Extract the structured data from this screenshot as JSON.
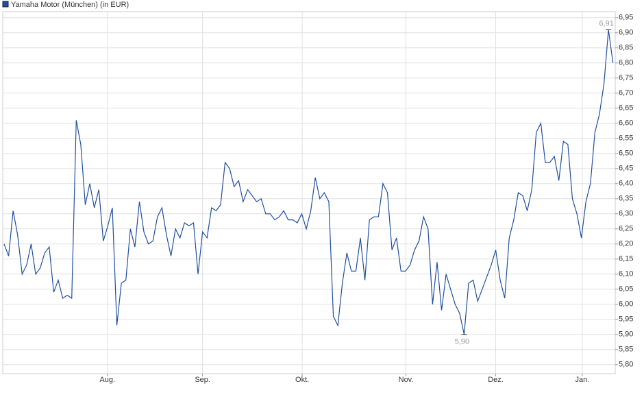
{
  "chart_data": {
    "type": "line",
    "series": [
      {
        "name": "Yamaha Motor (München) (in EUR)",
        "color": "#1f4fa0",
        "values": [
          6.2,
          6.16,
          6.31,
          6.23,
          6.1,
          6.13,
          6.2,
          6.1,
          6.12,
          6.17,
          6.19,
          6.04,
          6.08,
          6.02,
          6.03,
          6.02,
          6.61,
          6.53,
          6.33,
          6.4,
          6.32,
          6.38,
          6.21,
          6.26,
          6.32,
          5.93,
          6.07,
          6.08,
          6.25,
          6.19,
          6.34,
          6.24,
          6.2,
          6.21,
          6.29,
          6.32,
          6.23,
          6.16,
          6.25,
          6.22,
          6.27,
          6.26,
          6.27,
          6.1,
          6.24,
          6.22,
          6.32,
          6.31,
          6.33,
          6.47,
          6.45,
          6.39,
          6.41,
          6.34,
          6.38,
          6.36,
          6.34,
          6.35,
          6.3,
          6.3,
          6.28,
          6.29,
          6.31,
          6.28,
          6.28,
          6.27,
          6.3,
          6.25,
          6.31,
          6.42,
          6.35,
          6.37,
          6.34,
          5.96,
          5.93,
          6.07,
          6.17,
          6.11,
          6.11,
          6.22,
          6.08,
          6.28,
          6.29,
          6.29,
          6.4,
          6.37,
          6.18,
          6.22,
          6.11,
          6.11,
          6.13,
          6.18,
          6.21,
          6.29,
          6.25,
          6.0,
          6.14,
          5.98,
          6.1,
          6.05,
          6.0,
          5.97,
          5.9,
          6.07,
          6.08,
          6.01,
          6.05,
          6.09,
          6.13,
          6.18,
          6.08,
          6.02,
          6.22,
          6.28,
          6.37,
          6.36,
          6.31,
          6.38,
          6.57,
          6.6,
          6.47,
          6.47,
          6.49,
          6.41,
          6.54,
          6.53,
          6.35,
          6.3,
          6.22,
          6.34,
          6.4,
          6.57,
          6.63,
          6.73,
          6.91,
          6.8
        ],
        "value_labels": [
          null,
          null,
          null,
          null,
          null,
          null,
          null,
          null,
          null,
          null,
          null,
          null,
          null,
          null,
          null,
          null,
          null,
          null,
          null,
          null,
          null,
          null,
          null,
          null,
          null,
          null,
          null,
          null,
          null,
          null,
          null,
          null,
          null,
          null,
          null,
          null,
          null,
          null,
          null,
          null,
          null,
          null,
          null,
          null,
          null,
          null,
          null,
          null,
          null,
          null,
          null,
          null,
          null,
          null,
          null,
          null,
          null,
          null,
          null,
          null,
          null,
          null,
          null,
          null,
          null,
          null,
          null,
          null,
          null,
          null,
          null,
          null,
          null,
          null,
          null,
          null,
          null,
          null,
          null,
          null,
          null,
          null,
          null,
          null,
          null,
          null,
          null,
          null,
          null,
          null,
          null,
          null,
          null,
          null,
          null,
          null,
          null,
          null,
          null,
          null,
          null,
          null,
          "5,90",
          null,
          null,
          null,
          null,
          null,
          null,
          null,
          null,
          null,
          null,
          null,
          null,
          null,
          null,
          null,
          null,
          null,
          null,
          null,
          null,
          null,
          null,
          null,
          null,
          null,
          null,
          null,
          null,
          null,
          null,
          null,
          "6,91",
          null
        ]
      }
    ],
    "x": [
      0,
      1,
      2,
      3,
      4,
      5,
      6,
      7,
      8,
      9,
      10,
      11,
      12,
      13,
      14,
      15,
      16,
      17,
      18,
      19,
      20,
      21,
      22,
      23,
      24,
      25,
      26,
      27,
      28,
      29,
      30,
      31,
      32,
      33,
      34,
      35,
      36,
      37,
      38,
      39,
      40,
      41,
      42,
      43,
      44,
      45,
      46,
      47,
      48,
      49,
      50,
      51,
      52,
      53,
      54,
      55,
      56,
      57,
      58,
      59,
      60,
      61,
      62,
      63,
      64,
      65,
      66,
      67,
      68,
      69,
      70,
      71,
      72,
      73,
      74,
      75,
      76,
      77,
      78,
      79,
      80,
      81,
      82,
      83,
      84,
      85,
      86,
      87,
      88,
      89,
      90,
      91,
      92,
      93,
      94,
      95,
      96,
      97,
      98,
      99,
      100,
      101,
      102,
      103,
      104,
      105,
      106,
      107,
      108,
      109,
      110,
      111,
      112,
      113,
      114,
      115,
      116,
      117,
      118,
      119,
      120,
      121,
      122,
      123,
      124,
      125,
      126,
      127,
      128,
      129,
      130,
      131,
      132,
      133,
      134,
      135
    ],
    "xlim": [
      -0.3,
      135.5
    ],
    "xticks": [
      {
        "value": 22.9,
        "label": "Aug."
      },
      {
        "value": 44,
        "label": "Sep."
      },
      {
        "value": 66.1,
        "label": "Okt."
      },
      {
        "value": 89.1,
        "label": "Nov."
      },
      {
        "value": 109,
        "label": "Dez."
      },
      {
        "value": 128.2,
        "label": "Jan."
      }
    ],
    "ylim": [
      5.77,
      6.97
    ],
    "yticks": [
      {
        "value": 6.95,
        "label": "6,95"
      },
      {
        "value": 6.9,
        "label": "6,90"
      },
      {
        "value": 6.85,
        "label": "6,85"
      },
      {
        "value": 6.8,
        "label": "6,80"
      },
      {
        "value": 6.75,
        "label": "6,75"
      },
      {
        "value": 6.7,
        "label": "6,70"
      },
      {
        "value": 6.65,
        "label": "6,65"
      },
      {
        "value": 6.6,
        "label": "6,60"
      },
      {
        "value": 6.55,
        "label": "6,55"
      },
      {
        "value": 6.5,
        "label": "6,50"
      },
      {
        "value": 6.45,
        "label": "6,45"
      },
      {
        "value": 6.4,
        "label": "6,40"
      },
      {
        "value": 6.35,
        "label": "6,35"
      },
      {
        "value": 6.3,
        "label": "6,30"
      },
      {
        "value": 6.25,
        "label": "6,25"
      },
      {
        "value": 6.2,
        "label": "6,20"
      },
      {
        "value": 6.15,
        "label": "6,15"
      },
      {
        "value": 6.1,
        "label": "6,10"
      },
      {
        "value": 6.05,
        "label": "6,05"
      },
      {
        "value": 6.0,
        "label": "6,00"
      },
      {
        "value": 5.95,
        "label": "5,95"
      },
      {
        "value": 5.9,
        "label": "5,90"
      },
      {
        "value": 5.85,
        "label": "5,85"
      },
      {
        "value": 5.8,
        "label": "5,80"
      }
    ],
    "grid": true,
    "legend": "top-left"
  }
}
